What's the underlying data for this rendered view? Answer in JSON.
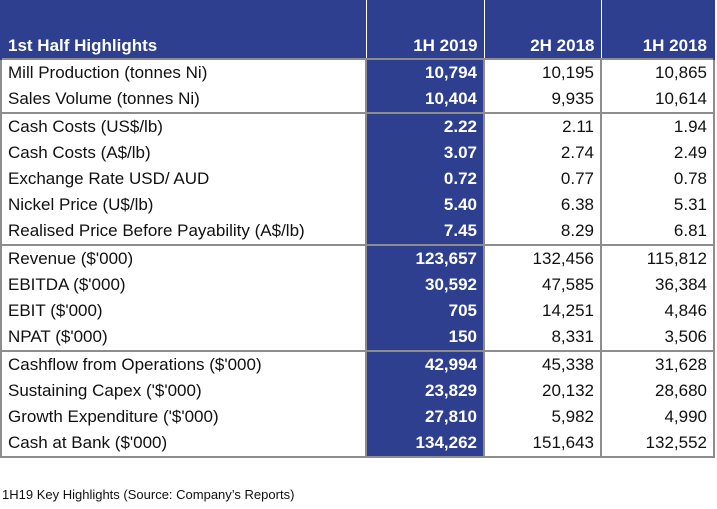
{
  "table": {
    "headers": [
      "1st Half Highlights",
      "1H 2019",
      "2H 2018",
      "1H 2018"
    ],
    "groups": [
      {
        "rows": [
          {
            "label": "Mill Production (tonnes Ni)",
            "values": [
              "10,794",
              "10,195",
              "10,865"
            ]
          },
          {
            "label": "Sales Volume (tonnes Ni)",
            "values": [
              "10,404",
              "9,935",
              "10,614"
            ]
          }
        ]
      },
      {
        "rows": [
          {
            "label": "Cash Costs (US$/lb)",
            "values": [
              "2.22",
              "2.11",
              "1.94"
            ]
          },
          {
            "label": "Cash Costs (A$/lb)",
            "values": [
              "3.07",
              "2.74",
              "2.49"
            ]
          },
          {
            "label": "Exchange Rate USD/ AUD",
            "values": [
              "0.72",
              "0.77",
              "0.78"
            ]
          },
          {
            "label": "Nickel Price (U$/lb)",
            "values": [
              "5.40",
              "6.38",
              "5.31"
            ]
          },
          {
            "label": "Realised Price Before Payability (A$/lb)",
            "values": [
              "7.45",
              "8.29",
              "6.81"
            ]
          }
        ]
      },
      {
        "rows": [
          {
            "label": "Revenue ($'000)",
            "values": [
              "123,657",
              "132,456",
              "115,812"
            ]
          },
          {
            "label": "EBITDA ($'000)",
            "values": [
              "30,592",
              "47,585",
              "36,384"
            ]
          },
          {
            "label": "EBIT ($'000)",
            "values": [
              "705",
              "14,251",
              "4,846"
            ]
          },
          {
            "label": "NPAT ($'000)",
            "values": [
              "150",
              "8,331",
              "3,506"
            ]
          }
        ]
      },
      {
        "rows": [
          {
            "label": "Cashflow from Operations ($'000)",
            "values": [
              "42,994",
              "45,338",
              "31,628"
            ]
          },
          {
            "label": "Sustaining Capex ('$'000)",
            "values": [
              "23,829",
              "20,132",
              "28,680"
            ]
          },
          {
            "label": "Growth Expenditure ('$'000)",
            "values": [
              "27,810",
              "5,982",
              "4,990"
            ]
          },
          {
            "label": "Cash at Bank ($'000)",
            "values": [
              "134,262",
              "151,643",
              "132,552"
            ]
          }
        ]
      }
    ]
  },
  "caption": "1H19 Key Highlights (Source: Company’s Reports)",
  "colors": {
    "header_bg": "#2e3f8f",
    "highlight_bg": "#2e3f8f",
    "grid": "#8d8d8d"
  }
}
